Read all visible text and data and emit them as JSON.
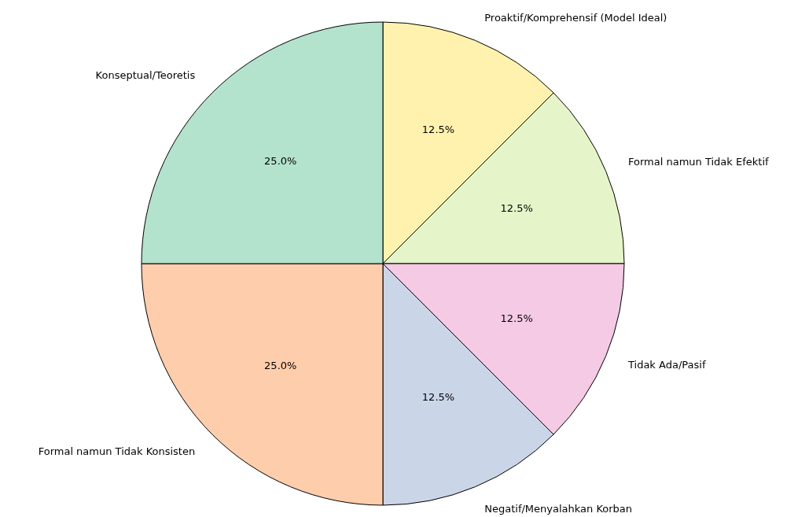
{
  "chart_data": {
    "type": "pie",
    "categories": [
      "Proaktif/Komprehensif (Model Ideal)",
      "Formal namun Tidak Efektif",
      "Tidak Ada/Pasif",
      "Negatif/Menyalahkan Korban",
      "Formal namun Tidak Konsisten",
      "Konseptual/Teoretis"
    ],
    "values": [
      12.5,
      12.5,
      12.5,
      12.5,
      25.0,
      25.0
    ],
    "colors": [
      "#fff2ae",
      "#e6f5c9",
      "#f4cae4",
      "#cbd5e8",
      "#fdcdac",
      "#b3e2cd"
    ],
    "value_labels": [
      "12.5%",
      "12.5%",
      "12.5%",
      "12.5%",
      "25.0%",
      "25.0%"
    ]
  }
}
